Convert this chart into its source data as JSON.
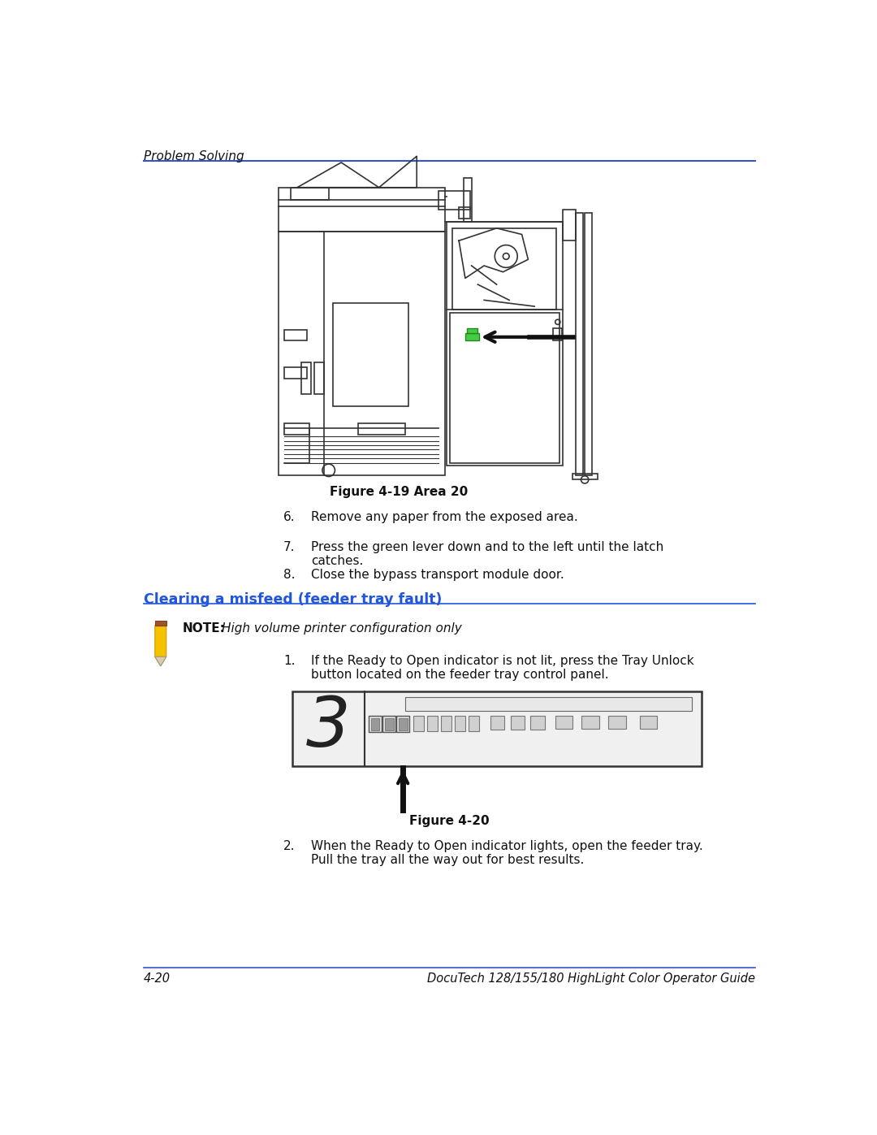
{
  "bg_color": "#ffffff",
  "header_text": "Problem Solving",
  "header_line_color": "#3355cc",
  "footer_line_color": "#3355cc",
  "footer_left": "4-20",
  "footer_right": "DocuTech 128/155/180 HighLight Color Operator Guide",
  "figure_caption_1": "Figure 4-19 Area 20",
  "figure_caption_2": "Figure 4-20",
  "section_title": "Clearing a misfeed (feeder tray fault)",
  "section_title_color": "#2255dd",
  "note_label": "NOTE:",
  "note_text": "High volume printer configuration only",
  "items_6_8": [
    {
      "num": "6.",
      "text": "Remove any paper from the exposed area."
    },
    {
      "num": "7.",
      "text": "Press the green lever down and to the left until the latch\ncatches."
    },
    {
      "num": "8.",
      "text": "Close the bypass transport module door."
    }
  ],
  "item_1": {
    "num": "1.",
    "text": "If the Ready to Open indicator is not lit, press the Tray Unlock\nbutton located on the feeder tray control panel."
  },
  "item_2": {
    "num": "2.",
    "text": "When the Ready to Open indicator lights, open the feeder tray.\nPull the tray all the way out for best results."
  }
}
